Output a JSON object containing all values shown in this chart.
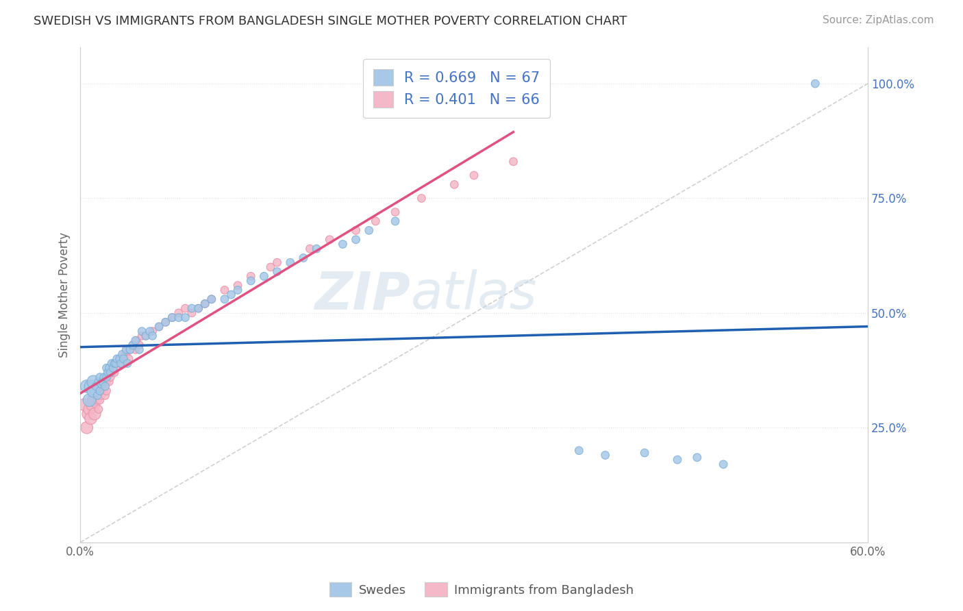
{
  "title": "SWEDISH VS IMMIGRANTS FROM BANGLADESH SINGLE MOTHER POVERTY CORRELATION CHART",
  "source": "Source: ZipAtlas.com",
  "ylabel": "Single Mother Poverty",
  "blue_R": 0.669,
  "blue_N": 67,
  "pink_R": 0.401,
  "pink_N": 66,
  "blue_color": "#a8c8e8",
  "pink_color": "#f4b8c8",
  "blue_edge_color": "#7aafd4",
  "pink_edge_color": "#e890a8",
  "blue_line_color": "#2060b0",
  "pink_line_color": "#e05080",
  "diagonal_color": "#d0d0d0",
  "watermark_color": "#c8d8e8",
  "legend_color": "#4472c4",
  "blue_scatter_x": [
    0.005,
    0.007,
    0.008,
    0.01,
    0.01,
    0.012,
    0.013,
    0.014,
    0.015,
    0.015,
    0.016,
    0.017,
    0.018,
    0.019,
    0.02,
    0.02,
    0.021,
    0.022,
    0.023,
    0.024,
    0.025,
    0.026,
    0.027,
    0.028,
    0.03,
    0.031,
    0.032,
    0.033,
    0.035,
    0.036,
    0.038,
    0.04,
    0.042,
    0.045,
    0.047,
    0.05,
    0.053,
    0.055,
    0.06,
    0.065,
    0.07,
    0.075,
    0.08,
    0.085,
    0.09,
    0.095,
    0.1,
    0.11,
    0.115,
    0.12,
    0.13,
    0.14,
    0.15,
    0.16,
    0.17,
    0.18,
    0.2,
    0.21,
    0.22,
    0.24,
    0.38,
    0.4,
    0.43,
    0.455,
    0.47,
    0.49,
    0.56
  ],
  "blue_scatter_y": [
    0.34,
    0.31,
    0.34,
    0.33,
    0.35,
    0.34,
    0.32,
    0.35,
    0.33,
    0.36,
    0.345,
    0.35,
    0.36,
    0.34,
    0.36,
    0.38,
    0.37,
    0.38,
    0.37,
    0.39,
    0.38,
    0.39,
    0.39,
    0.4,
    0.4,
    0.39,
    0.41,
    0.4,
    0.42,
    0.39,
    0.42,
    0.43,
    0.44,
    0.42,
    0.46,
    0.45,
    0.46,
    0.45,
    0.47,
    0.48,
    0.49,
    0.49,
    0.49,
    0.51,
    0.51,
    0.52,
    0.53,
    0.53,
    0.54,
    0.55,
    0.57,
    0.58,
    0.59,
    0.61,
    0.62,
    0.64,
    0.65,
    0.66,
    0.68,
    0.7,
    0.2,
    0.19,
    0.195,
    0.18,
    0.185,
    0.17,
    1.0
  ],
  "pink_scatter_x": [
    0.003,
    0.005,
    0.006,
    0.007,
    0.008,
    0.009,
    0.01,
    0.011,
    0.012,
    0.013,
    0.014,
    0.015,
    0.015,
    0.016,
    0.017,
    0.018,
    0.019,
    0.02,
    0.02,
    0.021,
    0.022,
    0.023,
    0.024,
    0.025,
    0.026,
    0.027,
    0.028,
    0.03,
    0.031,
    0.032,
    0.033,
    0.034,
    0.035,
    0.036,
    0.037,
    0.038,
    0.04,
    0.042,
    0.043,
    0.045,
    0.047,
    0.05,
    0.055,
    0.06,
    0.065,
    0.07,
    0.075,
    0.08,
    0.085,
    0.09,
    0.095,
    0.1,
    0.11,
    0.12,
    0.13,
    0.145,
    0.15,
    0.175,
    0.19,
    0.21,
    0.225,
    0.24,
    0.26,
    0.285,
    0.3,
    0.33
  ],
  "pink_scatter_y": [
    0.3,
    0.25,
    0.28,
    0.29,
    0.27,
    0.3,
    0.31,
    0.28,
    0.3,
    0.31,
    0.29,
    0.31,
    0.33,
    0.32,
    0.34,
    0.33,
    0.32,
    0.33,
    0.35,
    0.36,
    0.35,
    0.36,
    0.37,
    0.38,
    0.37,
    0.38,
    0.39,
    0.4,
    0.39,
    0.39,
    0.4,
    0.41,
    0.41,
    0.42,
    0.4,
    0.42,
    0.43,
    0.42,
    0.44,
    0.43,
    0.45,
    0.45,
    0.46,
    0.47,
    0.48,
    0.49,
    0.5,
    0.51,
    0.5,
    0.51,
    0.52,
    0.53,
    0.55,
    0.56,
    0.58,
    0.6,
    0.61,
    0.64,
    0.66,
    0.68,
    0.7,
    0.72,
    0.75,
    0.78,
    0.8,
    0.83
  ],
  "xlim": [
    0.0,
    0.6
  ],
  "ylim": [
    0.0,
    1.08
  ],
  "figsize": [
    14.06,
    8.92
  ],
  "dpi": 100
}
